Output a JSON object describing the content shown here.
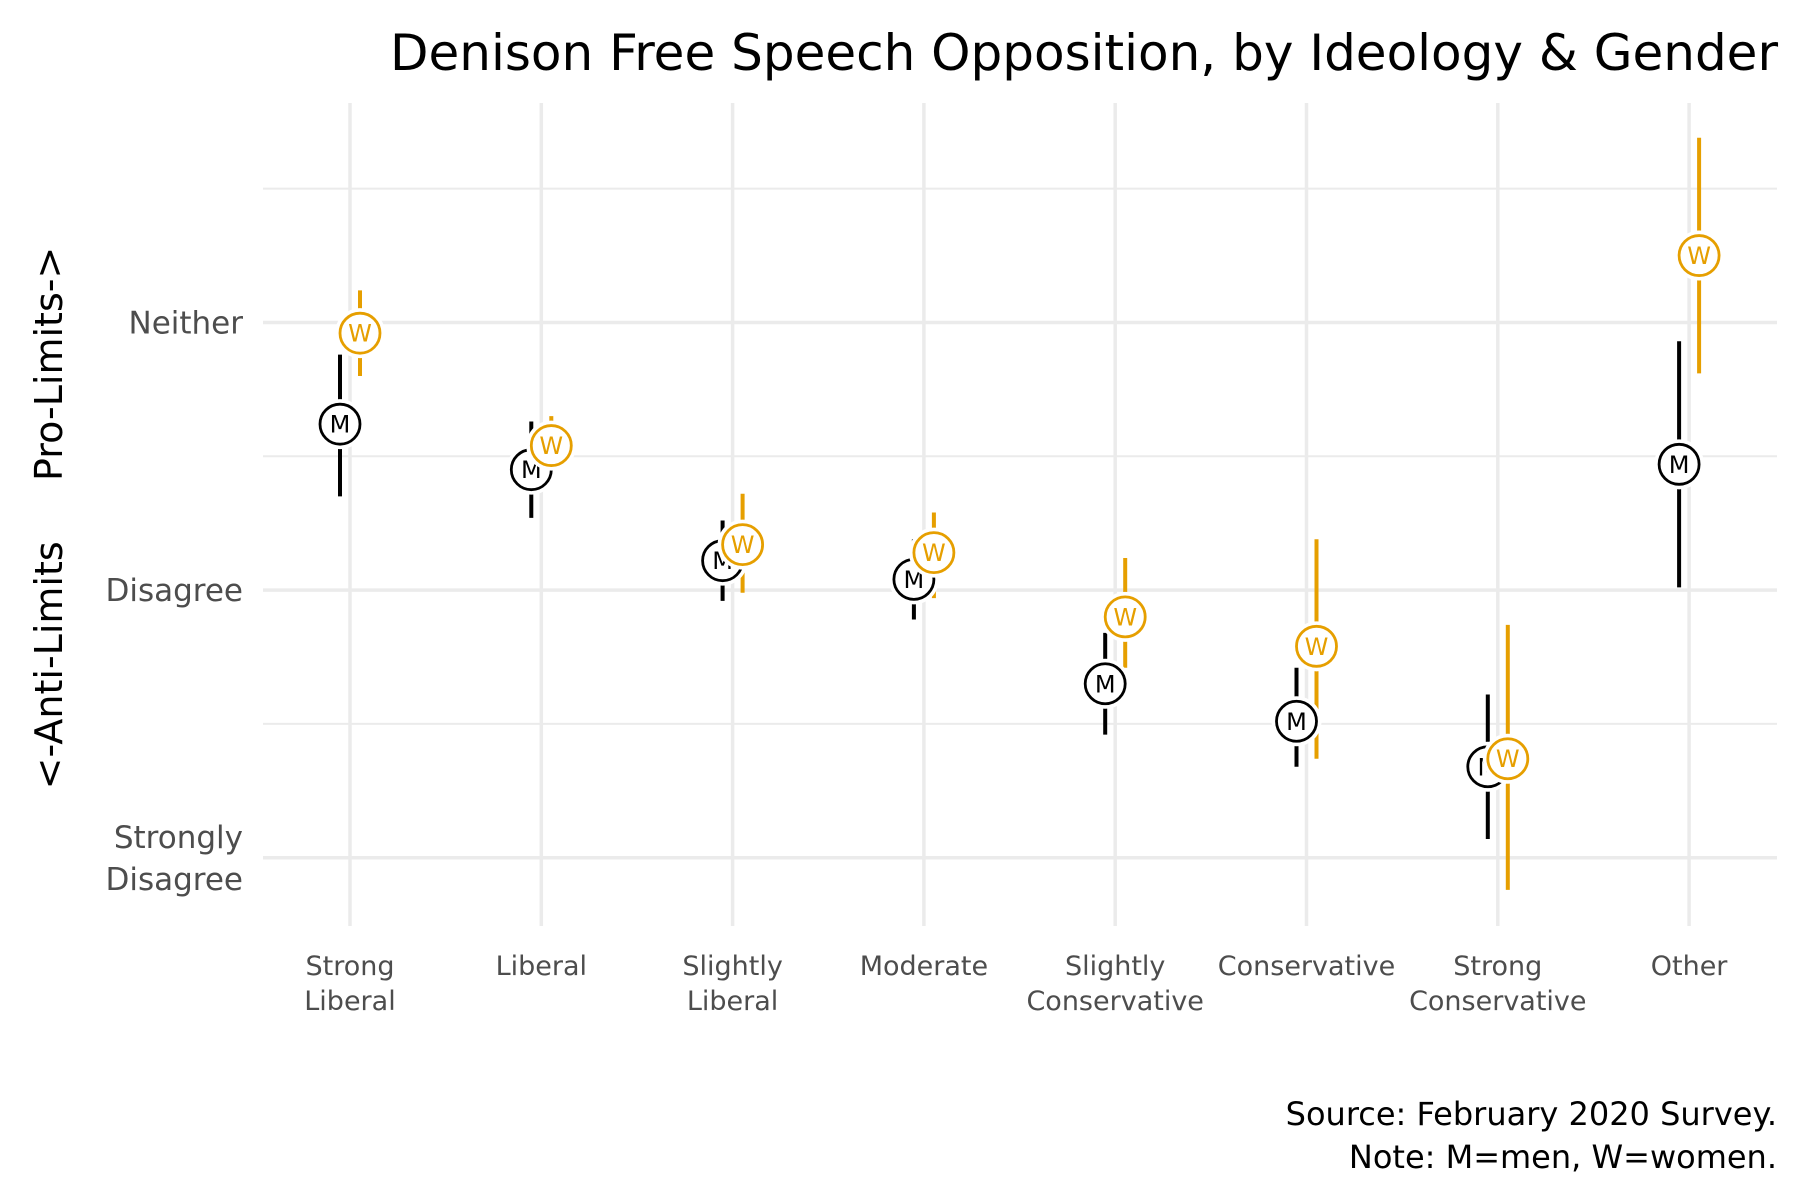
{
  "chart_data": {
    "type": "scatter",
    "subtype": "point-range",
    "title": "Denison Free Speech Opposition, by Ideology & Gender",
    "xlabel": "",
    "ylabel": "<-Anti-Limits     Pro-Limits->",
    "caption": [
      "Source: February 2020 Survey.",
      "Note: M=men, W=women."
    ],
    "categories": [
      [
        "Strong",
        "Liberal"
      ],
      [
        "Liberal"
      ],
      [
        "Slightly",
        "Liberal"
      ],
      [
        "Moderate"
      ],
      [
        "Slightly",
        "Conservative"
      ],
      [
        "Conservative"
      ],
      [
        "Strong",
        "Conservative"
      ],
      [
        "Other"
      ]
    ],
    "y_ticks": [
      {
        "value": 3,
        "label": [
          "Neither"
        ]
      },
      {
        "value": 2,
        "label": [
          "Disagree"
        ]
      },
      {
        "value": 1,
        "label": [
          "Strongly",
          "Disagree"
        ]
      }
    ],
    "y_minor_ticks": [
      3.5,
      2.5,
      1.5
    ],
    "ylim": [
      0.745,
      3.82
    ],
    "grid": true,
    "legend": "none (labels in markers)",
    "series": [
      {
        "name": "Men",
        "marker_label": "M",
        "color": "#000000",
        "values": [
          2.62,
          2.45,
          2.11,
          2.04,
          1.65,
          1.51,
          1.34,
          2.47
        ],
        "lower": [
          2.35,
          2.27,
          1.96,
          1.89,
          1.46,
          1.34,
          1.07,
          2.01
        ],
        "upper": [
          2.88,
          2.63,
          2.26,
          2.19,
          1.84,
          1.71,
          1.61,
          2.93
        ]
      },
      {
        "name": "Women",
        "marker_label": "W",
        "color": "#E69F00",
        "values": [
          2.96,
          2.54,
          2.17,
          2.14,
          1.9,
          1.79,
          1.37,
          3.25
        ],
        "lower": [
          2.8,
          2.43,
          1.99,
          1.97,
          1.71,
          1.37,
          0.88,
          2.81
        ],
        "upper": [
          3.12,
          2.65,
          2.36,
          2.29,
          2.12,
          2.19,
          1.87,
          3.69
        ]
      }
    ]
  },
  "colors": {
    "grid": "#ebebeb",
    "tick_text": "#4d4d4d",
    "men": "#000000",
    "women": "#E69F00"
  }
}
